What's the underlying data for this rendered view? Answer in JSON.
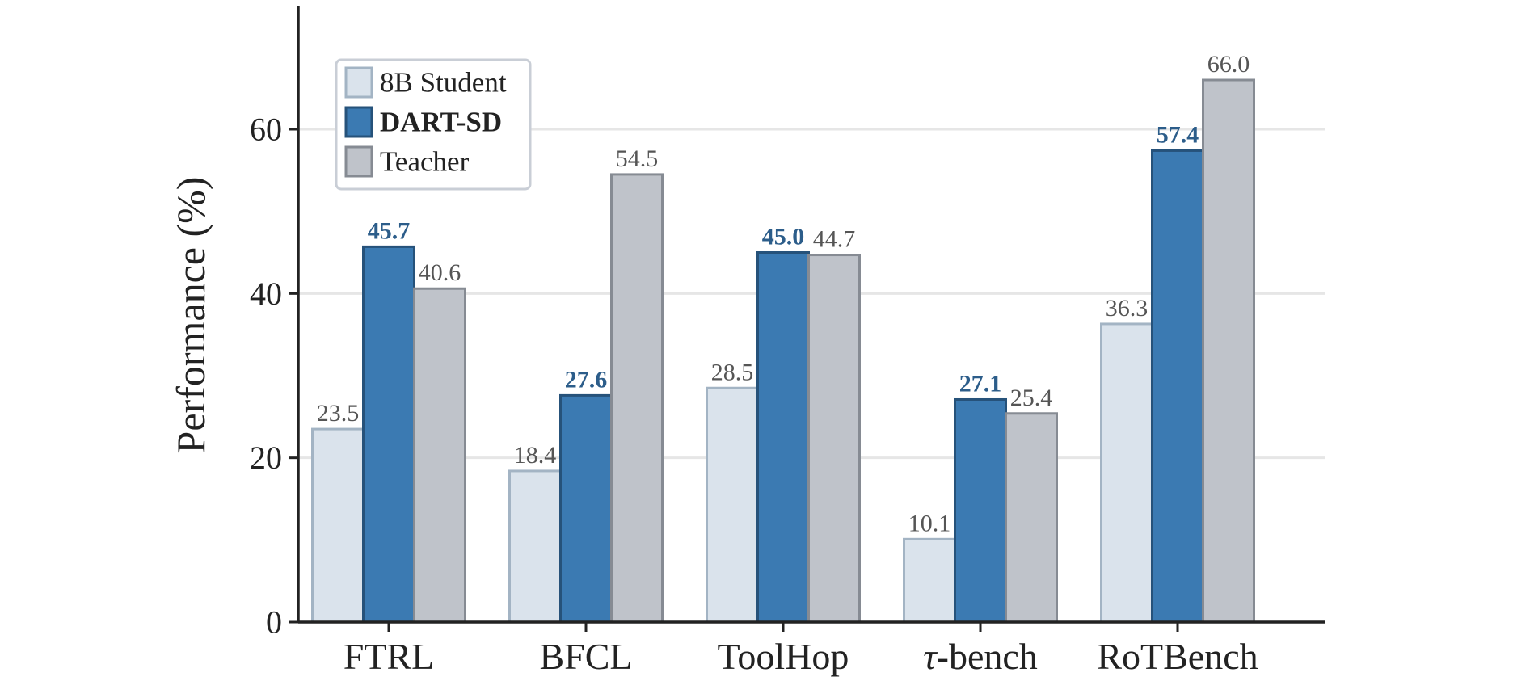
{
  "chart_data": {
    "type": "bar",
    "categories": [
      "FTRL",
      "BFCL",
      "ToolHop",
      "τ-bench",
      "RoTBench"
    ],
    "series": [
      {
        "name": "8B Student",
        "values": [
          23.5,
          18.4,
          28.5,
          10.1,
          36.3
        ],
        "fill": "#dae3ec",
        "stroke": "#a3b4c4",
        "label_color": "#555555",
        "label_bold": false,
        "legend_bold": false
      },
      {
        "name": "DART-SD",
        "values": [
          45.7,
          27.6,
          45.0,
          27.1,
          57.4
        ],
        "fill": "#3b7ab2",
        "stroke": "#26527a",
        "label_color": "#2c5d8a",
        "label_bold": true,
        "legend_bold": true
      },
      {
        "name": "Teacher",
        "values": [
          40.6,
          54.5,
          44.7,
          25.4,
          66.0
        ],
        "fill": "#bfc3ca",
        "stroke": "#868b93",
        "label_color": "#555555",
        "label_bold": false,
        "legend_bold": false
      }
    ],
    "value_labels": [
      [
        "23.5",
        "18.4",
        "28.5",
        "10.1",
        "36.3"
      ],
      [
        "45.7",
        "27.6",
        "45.0",
        "27.1",
        "57.4"
      ],
      [
        "40.6",
        "54.5",
        "44.7",
        "25.4",
        "66.0"
      ]
    ],
    "ylabel": "Performance (%)",
    "yticks": [
      0,
      20,
      40,
      60
    ],
    "ylim": [
      0,
      75
    ],
    "grid": true,
    "legend_position": "top-left"
  }
}
